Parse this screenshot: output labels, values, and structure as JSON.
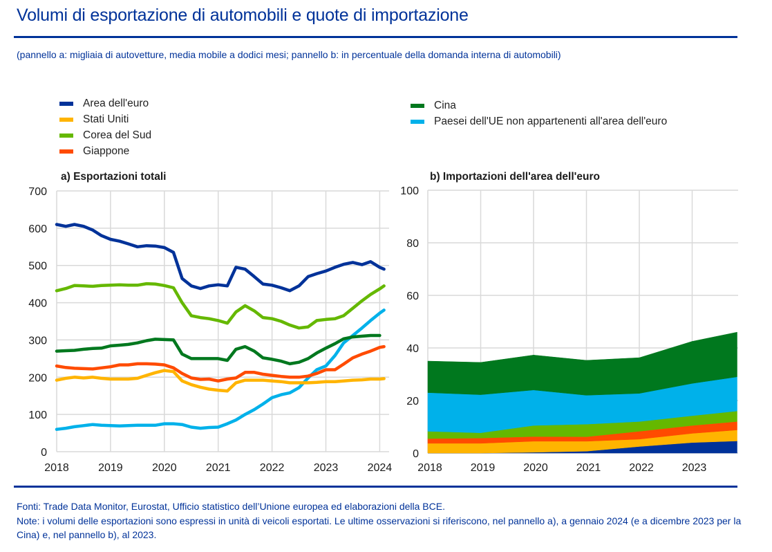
{
  "header": {
    "title": "Volumi di esportazione di automobili e quote di importazione",
    "subtitle": "(pannello a: migliaia di autovetture, media mobile a dodici mesi; pannello b: in percentuale della domanda interna di automobili)"
  },
  "legend": {
    "left": [
      {
        "label": "Area dell'euro",
        "color": "#003299"
      },
      {
        "label": "Stati Uniti",
        "color": "#FFB400"
      },
      {
        "label": "Corea del Sud",
        "color": "#65B800"
      },
      {
        "label": "Giappone",
        "color": "#FF4B00"
      }
    ],
    "right": [
      {
        "label": "Cina",
        "color": "#00781E"
      },
      {
        "label": "Paesei dell'UE non appartenenti all'area dell'euro",
        "color": "#00B1EA"
      }
    ]
  },
  "footer": {
    "sources": "Fonti: Trade Data Monitor, Eurostat, Ufficio statistico dell’Unione europea ed elaborazioni della BCE.",
    "notes": "Note: i volumi delle esportazioni sono espressi in unità di veicoli esportati. Le ultime osservazioni si riferiscono, nel pannello a), a gennaio 2024 (e a dicembre 2023 per la Cina) e, nel pannello b), al 2023."
  },
  "chart_data": [
    {
      "type": "line",
      "title": "a) Esportazioni totali",
      "xlabel": "",
      "ylabel": "",
      "ylim": [
        0,
        700
      ],
      "yticks": [
        0,
        100,
        200,
        300,
        400,
        500,
        600,
        700
      ],
      "xlim": [
        2018,
        2024.2
      ],
      "xticks": [
        2018,
        2019,
        2020,
        2021,
        2022,
        2023,
        2024
      ],
      "grid": true,
      "legend_position": "top",
      "x": [
        2018.0,
        2018.17,
        2018.33,
        2018.5,
        2018.67,
        2018.83,
        2019.0,
        2019.17,
        2019.33,
        2019.5,
        2019.67,
        2019.83,
        2020.0,
        2020.17,
        2020.33,
        2020.5,
        2020.67,
        2020.83,
        2021.0,
        2021.17,
        2021.33,
        2021.5,
        2021.67,
        2021.83,
        2022.0,
        2022.17,
        2022.33,
        2022.5,
        2022.67,
        2022.83,
        2023.0,
        2023.17,
        2023.33,
        2023.5,
        2023.67,
        2023.83,
        2024.0,
        2024.08
      ],
      "series": [
        {
          "name": "Area dell'euro",
          "color": "#003299",
          "values": [
            610,
            605,
            610,
            605,
            595,
            580,
            570,
            565,
            558,
            550,
            553,
            552,
            548,
            535,
            465,
            445,
            438,
            445,
            448,
            445,
            495,
            490,
            470,
            450,
            447,
            440,
            432,
            445,
            470,
            478,
            485,
            495,
            503,
            508,
            502,
            510,
            495,
            490
          ]
        },
        {
          "name": "Stati Uniti",
          "color": "#FFB400",
          "values": [
            192,
            197,
            200,
            198,
            200,
            197,
            195,
            195,
            195,
            197,
            205,
            212,
            218,
            215,
            190,
            180,
            173,
            168,
            165,
            163,
            185,
            192,
            192,
            192,
            190,
            188,
            185,
            185,
            185,
            186,
            188,
            188,
            190,
            192,
            193,
            195,
            195,
            196
          ]
        },
        {
          "name": "Corea del Sud",
          "color": "#65B800",
          "values": [
            432,
            438,
            446,
            445,
            444,
            446,
            447,
            448,
            447,
            447,
            451,
            450,
            446,
            440,
            400,
            365,
            360,
            357,
            352,
            345,
            375,
            392,
            378,
            360,
            357,
            350,
            340,
            332,
            335,
            352,
            355,
            357,
            365,
            385,
            405,
            422,
            437,
            445
          ]
        },
        {
          "name": "Giappone",
          "color": "#FF4B00",
          "values": [
            230,
            226,
            224,
            223,
            222,
            225,
            228,
            233,
            233,
            236,
            236,
            235,
            233,
            225,
            210,
            198,
            194,
            195,
            190,
            195,
            198,
            213,
            213,
            208,
            205,
            202,
            200,
            200,
            203,
            210,
            220,
            220,
            235,
            252,
            262,
            270,
            280,
            282
          ]
        },
        {
          "name": "Cina",
          "color": "#00781E",
          "values": [
            270,
            271,
            272,
            275,
            277,
            278,
            284,
            286,
            288,
            292,
            298,
            302,
            301,
            300,
            262,
            250,
            250,
            250,
            250,
            245,
            275,
            282,
            270,
            252,
            248,
            243,
            236,
            240,
            250,
            265,
            278,
            290,
            303,
            308,
            310,
            312,
            312
          ]
        },
        {
          "name": "Paesei dell'UE non appartenenti all'area dell'euro",
          "color": "#00B1EA",
          "values": [
            60,
            63,
            67,
            70,
            73,
            71,
            70,
            69,
            70,
            71,
            71,
            71,
            75,
            75,
            73,
            66,
            63,
            65,
            66,
            75,
            85,
            100,
            113,
            128,
            145,
            153,
            158,
            172,
            198,
            220,
            230,
            258,
            292,
            312,
            332,
            352,
            372,
            380
          ]
        }
      ]
    },
    {
      "type": "area",
      "stacked": true,
      "title": "b) Importazioni dell'area dell'euro",
      "xlabel": "",
      "ylabel": "",
      "ylim": [
        0,
        100
      ],
      "yticks": [
        0,
        20,
        40,
        60,
        80,
        100
      ],
      "xlim": [
        2018,
        2024
      ],
      "xticks": [
        2018,
        2019,
        2020,
        2021,
        2022,
        2023
      ],
      "grid": true,
      "x": [
        2018.0,
        2019.0,
        2020.0,
        2021.0,
        2022.0,
        2023.0,
        2023.85
      ],
      "series": [
        {
          "name": "Area dell'euro",
          "color": "#003299",
          "values": [
            0.0,
            0.0,
            0.3,
            0.7,
            2.5,
            4.0,
            4.6
          ]
        },
        {
          "name": "Stati Uniti",
          "color": "#FFB400",
          "values": [
            3.7,
            3.7,
            4.2,
            3.8,
            2.8,
            3.5,
            4.2
          ]
        },
        {
          "name": "Giappone",
          "color": "#FF4B00",
          "values": [
            1.8,
            2.0,
            1.8,
            1.7,
            3.0,
            3.0,
            3.2
          ]
        },
        {
          "name": "Corea del Sud",
          "color": "#65B800",
          "values": [
            2.8,
            2.0,
            4.2,
            4.8,
            3.7,
            3.7,
            4.0
          ]
        },
        {
          "name": "Paesei dell'UE non appartenenti all'area dell'euro",
          "color": "#00B1EA",
          "values": [
            14.7,
            14.5,
            13.5,
            11.0,
            10.7,
            12.3,
            13.0
          ]
        },
        {
          "name": "Cina",
          "color": "#00781E",
          "values": [
            12.0,
            12.3,
            13.3,
            13.3,
            13.6,
            16.0,
            17.0
          ]
        }
      ]
    }
  ]
}
